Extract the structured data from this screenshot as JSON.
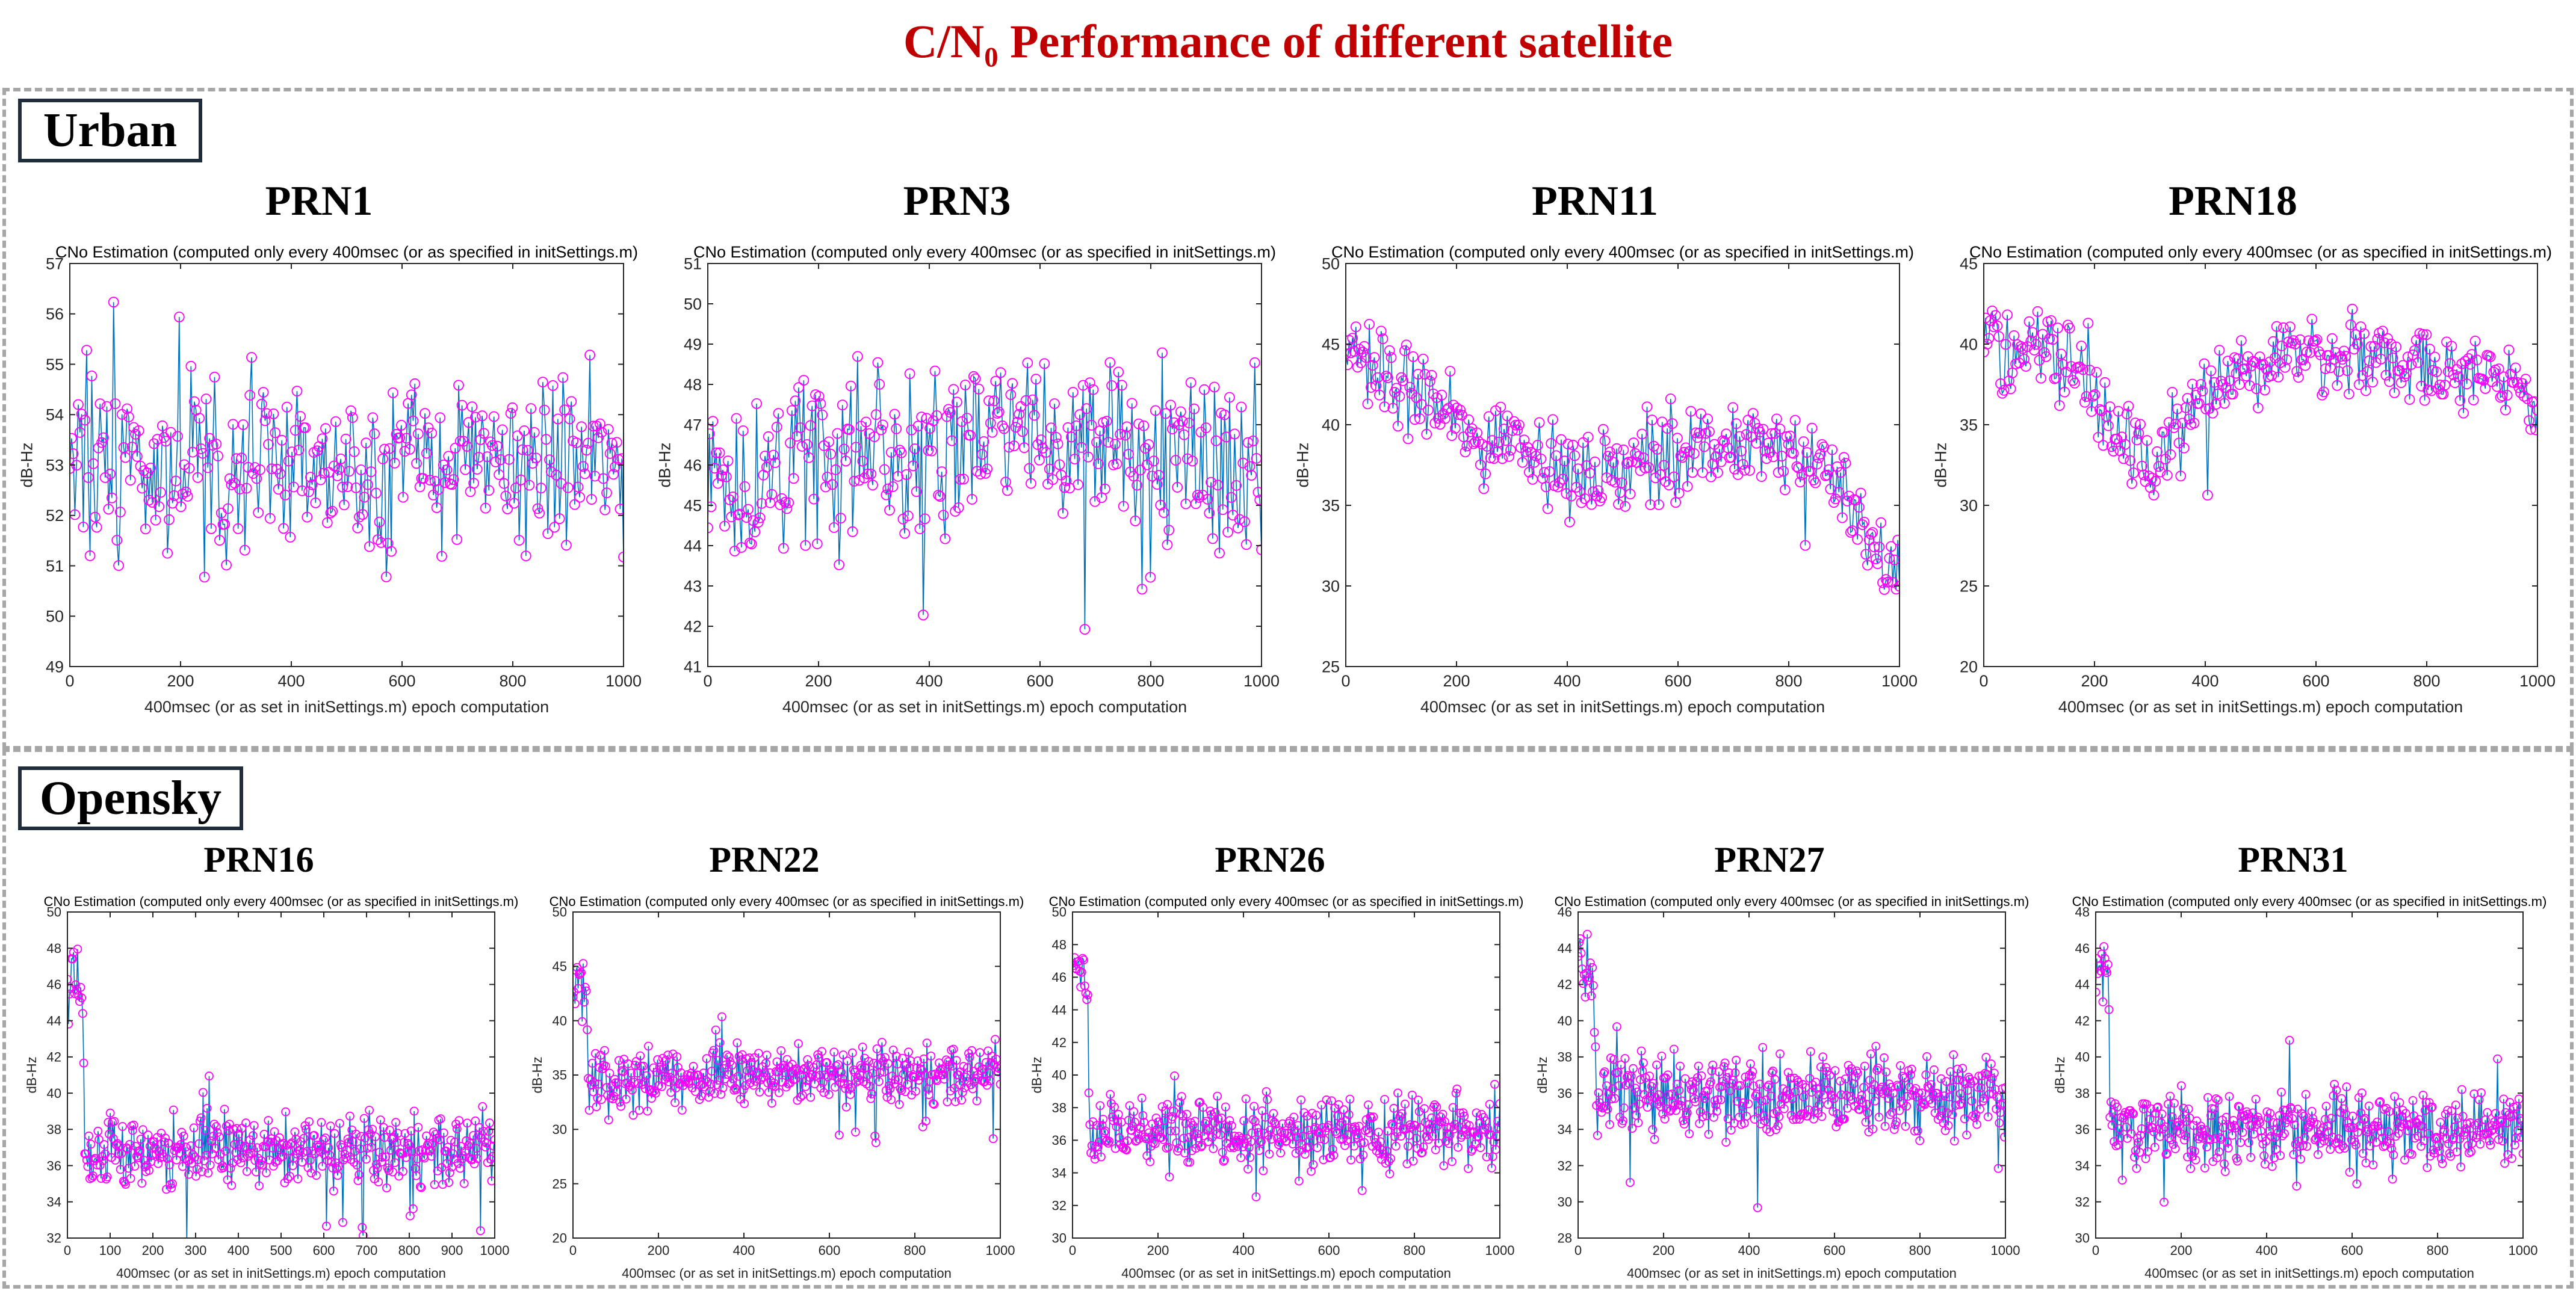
{
  "page": {
    "title": "C/N₀ Performance of different satellite"
  },
  "regions": [
    {
      "label": "Urban"
    },
    {
      "label": "Opensky"
    }
  ],
  "colors": {
    "title": "#c00000",
    "stem": "#0072bd",
    "marker": "#ff00ff",
    "label_border": "#1f2d3a",
    "dash": "#a6a6a6"
  },
  "chart_data": [
    {
      "type": "scatter",
      "group": "Urban",
      "name": "PRN1",
      "title": "CNo Estimation (computed only every 400msec (or as specified in initSettings.m)",
      "xlabel": "400msec (or as set in initSettings.m) epoch computation",
      "ylabel": "dB-Hz",
      "xlim": [
        0,
        1000
      ],
      "ylim": [
        49,
        57
      ],
      "xticks": [
        0,
        200,
        400,
        600,
        800,
        1000
      ],
      "yticks": [
        49,
        50,
        51,
        52,
        53,
        54,
        55,
        56,
        57
      ],
      "grid": false,
      "legend": "none",
      "profile": [
        [
          0,
          53
        ],
        [
          1000,
          53
        ]
      ],
      "noise": 1.1,
      "count": 330
    },
    {
      "type": "scatter",
      "group": "Urban",
      "name": "PRN3",
      "title": "CNo Estimation (computed only every 400msec (or as specified in initSettings.m)",
      "xlabel": "400msec (or as set in initSettings.m) epoch computation",
      "ylabel": "dB-Hz",
      "xlim": [
        0,
        1000
      ],
      "ylim": [
        41,
        51
      ],
      "xticks": [
        0,
        200,
        400,
        600,
        800,
        1000
      ],
      "yticks": [
        41,
        42,
        43,
        44,
        45,
        46,
        47,
        48,
        49,
        50,
        51
      ],
      "grid": false,
      "legend": "none",
      "profile": [
        [
          0,
          45.8
        ],
        [
          250,
          46.3
        ],
        [
          500,
          46.8
        ],
        [
          700,
          46.6
        ],
        [
          1000,
          46.2
        ]
      ],
      "noise": 1.3,
      "count": 330
    },
    {
      "type": "scatter",
      "group": "Urban",
      "name": "PRN11",
      "title": "CNo Estimation (computed only every 400msec (or as specified in initSettings.m)",
      "xlabel": "400msec (or as set in initSettings.m) epoch computation",
      "ylabel": "dB-Hz",
      "xlim": [
        0,
        1000
      ],
      "ylim": [
        25,
        50
      ],
      "xticks": [
        0,
        200,
        400,
        600,
        800,
        1000
      ],
      "yticks": [
        25,
        30,
        35,
        40,
        45,
        50
      ],
      "grid": false,
      "legend": "none",
      "profile": [
        [
          0,
          44.5
        ],
        [
          150,
          41.5
        ],
        [
          250,
          38.5
        ],
        [
          300,
          40
        ],
        [
          400,
          36.5
        ],
        [
          600,
          38.5
        ],
        [
          800,
          38.5
        ],
        [
          900,
          36.5
        ],
        [
          970,
          31
        ],
        [
          1000,
          31
        ]
      ],
      "noise": 1.5,
      "count": 330
    },
    {
      "type": "scatter",
      "group": "Urban",
      "name": "PRN18",
      "title": "CNo Estimation (computed only every 400msec (or as specified in initSettings.m)",
      "xlabel": "400msec (or as set in initSettings.m) epoch computation",
      "ylabel": "dB-Hz",
      "xlim": [
        0,
        1000
      ],
      "ylim": [
        20,
        45
      ],
      "xticks": [
        0,
        200,
        400,
        600,
        800,
        1000
      ],
      "yticks": [
        20,
        25,
        30,
        35,
        40,
        45
      ],
      "grid": false,
      "legend": "none",
      "profile": [
        [
          0,
          40
        ],
        [
          150,
          39.5
        ],
        [
          250,
          34
        ],
        [
          300,
          32.5
        ],
        [
          400,
          37
        ],
        [
          500,
          39.5
        ],
        [
          600,
          39.5
        ],
        [
          800,
          39
        ],
        [
          1000,
          36.5
        ]
      ],
      "noise": 1.5,
      "count": 330
    },
    {
      "type": "scatter",
      "group": "Opensky",
      "name": "PRN16",
      "title": "CNo Estimation (computed only every 400msec (or as specified in initSettings.m)",
      "xlabel": "400msec (or as set in initSettings.m) epoch computation",
      "ylabel": "dB-Hz",
      "xlim": [
        0,
        1000
      ],
      "ylim": [
        32,
        50
      ],
      "xticks": [
        0,
        100,
        200,
        300,
        400,
        500,
        600,
        700,
        800,
        900,
        1000
      ],
      "yticks": [
        32,
        34,
        36,
        38,
        40,
        42,
        44,
        46,
        48,
        50
      ],
      "grid": false,
      "legend": "none",
      "profile": [
        [
          0,
          45.5
        ],
        [
          35,
          45.5
        ],
        [
          40,
          36.8
        ],
        [
          1000,
          36.8
        ]
      ],
      "noise": 1.2,
      "count": 420
    },
    {
      "type": "scatter",
      "group": "Opensky",
      "name": "PRN22",
      "title": "CNo Estimation (computed only every 400msec (or as specified in initSettings.m)",
      "xlabel": "400msec (or as set in initSettings.m) epoch computation",
      "ylabel": "dB-Hz",
      "xlim": [
        0,
        1000
      ],
      "ylim": [
        20,
        50
      ],
      "xticks": [
        0,
        200,
        400,
        600,
        800,
        1000
      ],
      "yticks": [
        20,
        25,
        30,
        35,
        40,
        45,
        50
      ],
      "grid": false,
      "legend": "none",
      "profile": [
        [
          0,
          43
        ],
        [
          30,
          43
        ],
        [
          35,
          34.5
        ],
        [
          500,
          35
        ],
        [
          1000,
          35
        ]
      ],
      "noise": 1.6,
      "count": 420
    },
    {
      "type": "scatter",
      "group": "Opensky",
      "name": "PRN26",
      "title": "CNo Estimation (computed only every 400msec (or as specified in initSettings.m)",
      "xlabel": "400msec (or as set in initSettings.m) epoch computation",
      "ylabel": "dB-Hz",
      "xlim": [
        0,
        1000
      ],
      "ylim": [
        30,
        50
      ],
      "xticks": [
        0,
        200,
        400,
        600,
        800,
        1000
      ],
      "yticks": [
        30,
        32,
        34,
        36,
        38,
        40,
        42,
        44,
        46,
        48,
        50
      ],
      "grid": false,
      "legend": "none",
      "profile": [
        [
          0,
          46
        ],
        [
          35,
          46
        ],
        [
          40,
          36.5
        ],
        [
          1000,
          36.5
        ]
      ],
      "noise": 1.3,
      "count": 420
    },
    {
      "type": "scatter",
      "group": "Opensky",
      "name": "PRN27",
      "title": "CNo Estimation (computed only every 400msec (or as specified in initSettings.m)",
      "xlabel": "400msec (or as set in initSettings.m) epoch computation",
      "ylabel": "dB-Hz",
      "xlim": [
        0,
        1000
      ],
      "ylim": [
        28,
        46
      ],
      "xticks": [
        0,
        200,
        400,
        600,
        800,
        1000
      ],
      "yticks": [
        28,
        30,
        32,
        34,
        36,
        38,
        40,
        42,
        44,
        46
      ],
      "grid": false,
      "legend": "none",
      "profile": [
        [
          0,
          43
        ],
        [
          35,
          43
        ],
        [
          40,
          35.8
        ],
        [
          1000,
          36
        ]
      ],
      "noise": 1.4,
      "count": 420
    },
    {
      "type": "scatter",
      "group": "Opensky",
      "name": "PRN31",
      "title": "CNo Estimation (computed only every 400msec (or as specified in initSettings.m)",
      "xlabel": "400msec (or as set in initSettings.m) epoch computation",
      "ylabel": "dB-Hz",
      "xlim": [
        0,
        1000
      ],
      "ylim": [
        30,
        48
      ],
      "xticks": [
        0,
        200,
        400,
        600,
        800,
        1000
      ],
      "yticks": [
        30,
        32,
        34,
        36,
        38,
        40,
        42,
        44,
        46,
        48
      ],
      "grid": false,
      "legend": "none",
      "profile": [
        [
          0,
          44.5
        ],
        [
          30,
          44.5
        ],
        [
          35,
          36
        ],
        [
          1000,
          36
        ]
      ],
      "noise": 1.2,
      "count": 420
    }
  ]
}
